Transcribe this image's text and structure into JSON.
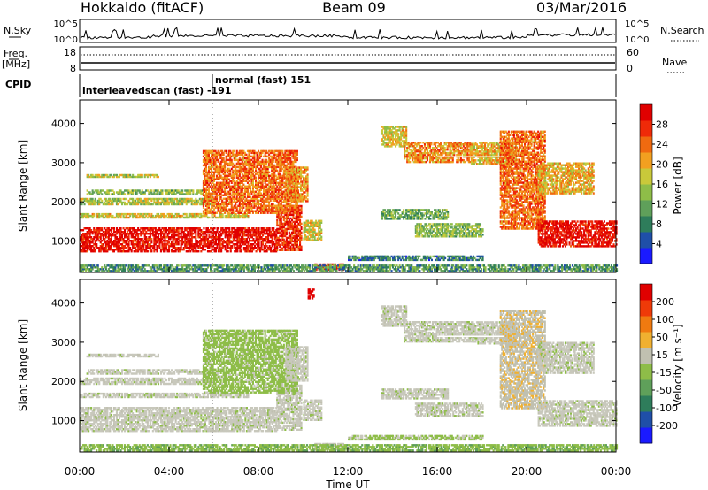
{
  "header": {
    "station": "Hokkaido (fitACF)",
    "beam": "Beam 09",
    "date": "03/Mar/2016"
  },
  "colors": {
    "power_scale": [
      "#1a1aff",
      "#1f4fa8",
      "#2e7d5b",
      "#5fa05a",
      "#8ebd48",
      "#c9c93a",
      "#f2a020",
      "#f06a10",
      "#ef2a08",
      "#e00000"
    ],
    "velocity_scale": [
      "#1a1aff",
      "#1f4fa8",
      "#2e7d5b",
      "#5fa05a",
      "#8ebd48",
      "#c0c0b0",
      "#f0b030",
      "#f07a10",
      "#ef3a08",
      "#e00000"
    ],
    "ground_scatter": "#c8c8bc"
  },
  "top_panels": {
    "nsky_label": "N.Sky",
    "nsky_ticks": [
      "10^5",
      "10^0"
    ],
    "nsearch_label": "N.Search",
    "nsearch_ticks": [
      "10^5",
      "10^0"
    ],
    "freq_label": "Freq.",
    "freq_unit": "[MHz]",
    "freq_ticks": [
      "18",
      "8"
    ],
    "nave_label": "Nave",
    "nave_ticks": [
      "60",
      "0"
    ],
    "cpid_label": "CPID",
    "cpid_entries": [
      {
        "text": "interleavedscan (fast) -191",
        "from_hour": 0.0
      },
      {
        "text": "normal (fast) 151",
        "from_hour": 5.9
      }
    ]
  },
  "chart_data": [
    {
      "type": "heatmap",
      "panel": "power",
      "ylabel": "Slant Range [km]",
      "ylim": [
        200,
        4600
      ],
      "yticks": [
        1000,
        2000,
        3000,
        4000
      ],
      "xlim": [
        0,
        24
      ],
      "colorbar": {
        "label": "Power [dB]",
        "ticks": [
          4,
          8,
          12,
          16,
          20,
          24,
          28
        ],
        "range": [
          0,
          32
        ]
      },
      "regions": [
        {
          "t0": 0.0,
          "t1": 8.8,
          "r0": 720,
          "r1": 1320,
          "v": 30
        },
        {
          "t0": 8.8,
          "t1": 9.9,
          "r0": 750,
          "r1": 1900,
          "v": 28
        },
        {
          "t0": 0.0,
          "t1": 7.5,
          "r0": 1580,
          "r1": 1700,
          "v": 18
        },
        {
          "t0": 0.0,
          "t1": 6.0,
          "r0": 1920,
          "r1": 2080,
          "v": 16
        },
        {
          "t0": 0.3,
          "t1": 5.5,
          "r0": 2180,
          "r1": 2300,
          "v": 14
        },
        {
          "t0": 0.3,
          "t1": 3.5,
          "r0": 2620,
          "r1": 2700,
          "v": 16
        },
        {
          "t0": 5.5,
          "t1": 9.7,
          "r0": 1700,
          "r1": 3300,
          "v": 24
        },
        {
          "t0": 9.2,
          "t1": 10.2,
          "r0": 2000,
          "r1": 2900,
          "v": 22
        },
        {
          "t0": 10.0,
          "t1": 10.8,
          "r0": 1000,
          "r1": 1500,
          "v": 18
        },
        {
          "t0": 10.5,
          "t1": 11.8,
          "r0": 250,
          "r1": 420,
          "v": 28
        },
        {
          "t0": 13.5,
          "t1": 14.6,
          "r0": 3400,
          "r1": 3900,
          "v": 18
        },
        {
          "t0": 14.5,
          "t1": 17.5,
          "r0": 3000,
          "r1": 3500,
          "v": 22
        },
        {
          "t0": 17.5,
          "t1": 19.5,
          "r0": 2950,
          "r1": 3500,
          "v": 20
        },
        {
          "t0": 18.8,
          "t1": 20.8,
          "r0": 1300,
          "r1": 3800,
          "v": 24
        },
        {
          "t0": 20.5,
          "t1": 24.0,
          "r0": 850,
          "r1": 1500,
          "v": 30
        },
        {
          "t0": 20.5,
          "t1": 23.0,
          "r0": 2200,
          "r1": 3000,
          "v": 20
        },
        {
          "t0": 15.0,
          "t1": 18.0,
          "r0": 1100,
          "r1": 1450,
          "v": 14
        },
        {
          "t0": 13.5,
          "t1": 16.5,
          "r0": 1550,
          "r1": 1800,
          "v": 12
        },
        {
          "t0": 0.0,
          "t1": 24.0,
          "r0": 220,
          "r1": 360,
          "v": 10
        },
        {
          "t0": 12.0,
          "t1": 18.0,
          "r0": 500,
          "r1": 600,
          "v": 8
        }
      ]
    },
    {
      "type": "heatmap",
      "panel": "velocity",
      "ylabel": "Slant Range [km]",
      "ylim": [
        200,
        4600
      ],
      "yticks": [
        1000,
        2000,
        3000,
        4000
      ],
      "xlim": [
        0,
        24
      ],
      "xticks": [
        "00:00",
        "04:00",
        "08:00",
        "12:00",
        "16:00",
        "20:00",
        "00:00"
      ],
      "xlabel": "Time UT",
      "colorbar": {
        "label": "Velocity [m s⁻¹]",
        "ticks": [
          200,
          100,
          50,
          15,
          -15,
          -50,
          -100,
          -200
        ],
        "range": [
          -250,
          250
        ]
      },
      "regions": [
        {
          "t0": 0.0,
          "t1": 8.8,
          "r0": 720,
          "r1": 1320,
          "v": 0
        },
        {
          "t0": 8.8,
          "t1": 9.9,
          "r0": 750,
          "r1": 1900,
          "v": 0
        },
        {
          "t0": 0.0,
          "t1": 7.5,
          "r0": 1580,
          "r1": 1700,
          "v": 0
        },
        {
          "t0": 0.0,
          "t1": 6.0,
          "r0": 1920,
          "r1": 2080,
          "v": 0
        },
        {
          "t0": 0.3,
          "t1": 5.5,
          "r0": 2180,
          "r1": 2300,
          "v": 0
        },
        {
          "t0": 0.3,
          "t1": 3.5,
          "r0": 2620,
          "r1": 2700,
          "v": 0
        },
        {
          "t0": 5.5,
          "t1": 9.7,
          "r0": 1700,
          "r1": 3300,
          "v": -30
        },
        {
          "t0": 9.2,
          "t1": 10.2,
          "r0": 2000,
          "r1": 2900,
          "v": 0
        },
        {
          "t0": 10.0,
          "t1": 10.8,
          "r0": 1000,
          "r1": 1500,
          "v": 0
        },
        {
          "t0": 10.5,
          "t1": 11.8,
          "r0": 250,
          "r1": 420,
          "v": 0
        },
        {
          "t0": 10.2,
          "t1": 10.5,
          "r0": 4100,
          "r1": 4350,
          "v": 220
        },
        {
          "t0": 13.5,
          "t1": 14.6,
          "r0": 3400,
          "r1": 3900,
          "v": 0
        },
        {
          "t0": 14.5,
          "t1": 17.5,
          "r0": 3000,
          "r1": 3500,
          "v": 0
        },
        {
          "t0": 17.5,
          "t1": 19.5,
          "r0": 2950,
          "r1": 3500,
          "v": 0
        },
        {
          "t0": 18.8,
          "t1": 20.8,
          "r0": 1300,
          "r1": 3800,
          "v": 40
        },
        {
          "t0": 20.5,
          "t1": 24.0,
          "r0": 850,
          "r1": 1500,
          "v": 0
        },
        {
          "t0": 20.5,
          "t1": 23.0,
          "r0": 2200,
          "r1": 3000,
          "v": 0
        },
        {
          "t0": 15.0,
          "t1": 18.0,
          "r0": 1100,
          "r1": 1450,
          "v": 0
        },
        {
          "t0": 13.5,
          "t1": 16.5,
          "r0": 1550,
          "r1": 1800,
          "v": 0
        },
        {
          "t0": 0.0,
          "t1": 24.0,
          "r0": 220,
          "r1": 360,
          "v": -40
        },
        {
          "t0": 12.0,
          "t1": 18.0,
          "r0": 500,
          "r1": 600,
          "v": -20
        }
      ]
    }
  ]
}
